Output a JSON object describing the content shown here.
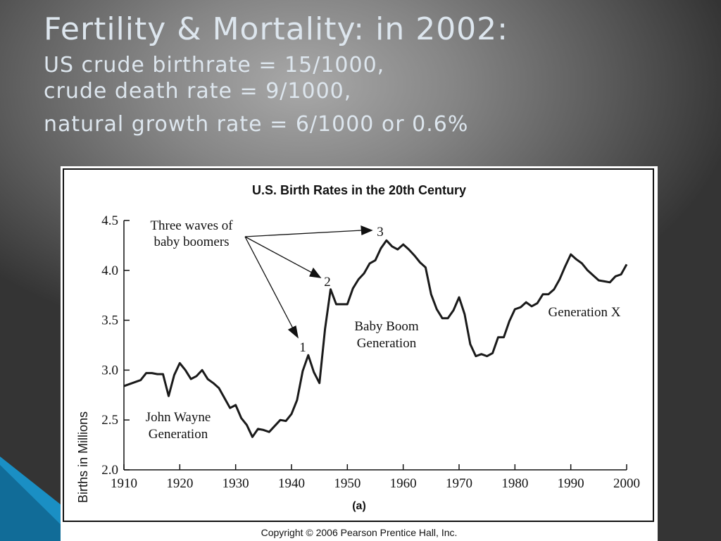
{
  "slide": {
    "title_line1": "Fertility & Mortality: in 2002:",
    "title_line2": "US crude birthrate = 15/1000,",
    "title_line3": "crude death rate = 9/1000,",
    "title_line4": "natural growth rate = 6/1000 or 0.6%",
    "accent_color": "#1a8fc4"
  },
  "copyright": "Copyright © 2006 Pearson Prentice Hall, Inc.",
  "chart_data": {
    "type": "line",
    "title": "U.S. Birth Rates in the 20th Century",
    "caption": "(a)",
    "xlabel": "",
    "ylabel": "Births in Millions",
    "xlim": [
      1910,
      2000
    ],
    "ylim": [
      2.0,
      4.5
    ],
    "xticks": [
      1910,
      1920,
      1930,
      1940,
      1950,
      1960,
      1970,
      1980,
      1990,
      2000
    ],
    "yticks": [
      "2.0",
      "2.5",
      "3.0",
      "3.5",
      "4.0",
      "4.5"
    ],
    "grid": false,
    "line_color": "#1a1a1a",
    "series": [
      {
        "x": [
          1910,
          1913,
          1914,
          1915,
          1916,
          1917,
          1918,
          1919,
          1920,
          1921,
          1922,
          1923,
          1924,
          1925,
          1926,
          1927,
          1928,
          1929,
          1930,
          1931,
          1932,
          1933,
          1934,
          1935,
          1936,
          1937,
          1938,
          1939,
          1940,
          1941,
          1942,
          1943,
          1944,
          1945,
          1946,
          1947,
          1948,
          1949,
          1950,
          1951,
          1952,
          1953,
          1954,
          1955,
          1956,
          1957,
          1958,
          1959,
          1960,
          1961,
          1962,
          1963,
          1964,
          1965,
          1966,
          1967,
          1968,
          1969,
          1970,
          1971,
          1972,
          1973,
          1974,
          1975,
          1976,
          1977,
          1978,
          1979,
          1980,
          1981,
          1982,
          1983,
          1984,
          1985,
          1986,
          1987,
          1988,
          1989,
          1990,
          1991,
          1992,
          1993,
          1994,
          1995,
          1996,
          1997,
          1998,
          1999,
          2000
        ],
        "y": [
          2.84,
          2.9,
          2.97,
          2.97,
          2.96,
          2.96,
          2.74,
          2.95,
          3.07,
          3.0,
          2.91,
          2.94,
          3.0,
          2.91,
          2.87,
          2.82,
          2.72,
          2.62,
          2.65,
          2.52,
          2.45,
          2.33,
          2.41,
          2.4,
          2.38,
          2.44,
          2.5,
          2.49,
          2.56,
          2.7,
          2.99,
          3.15,
          2.98,
          2.87,
          3.41,
          3.81,
          3.66,
          3.66,
          3.66,
          3.82,
          3.91,
          3.97,
          4.07,
          4.1,
          4.22,
          4.3,
          4.24,
          4.21,
          4.26,
          4.21,
          4.15,
          4.08,
          4.03,
          3.76,
          3.61,
          3.52,
          3.52,
          3.6,
          3.73,
          3.56,
          3.26,
          3.14,
          3.16,
          3.14,
          3.17,
          3.33,
          3.33,
          3.49,
          3.61,
          3.63,
          3.68,
          3.64,
          3.67,
          3.76,
          3.76,
          3.81,
          3.91,
          4.04,
          4.16,
          4.11,
          4.07,
          4.0,
          3.95,
          3.9,
          3.89,
          3.88,
          3.94,
          3.96,
          4.06
        ]
      }
    ],
    "annotations": {
      "waves_label_line1": "Three waves of",
      "waves_label_line2": "baby boomers",
      "marker_1": "1",
      "marker_2": "2",
      "marker_3": "3",
      "jw_line1": "John Wayne",
      "jw_line2": "Generation",
      "bb_line1": "Baby Boom",
      "bb_line2": "Generation",
      "genx": "Generation X"
    }
  }
}
